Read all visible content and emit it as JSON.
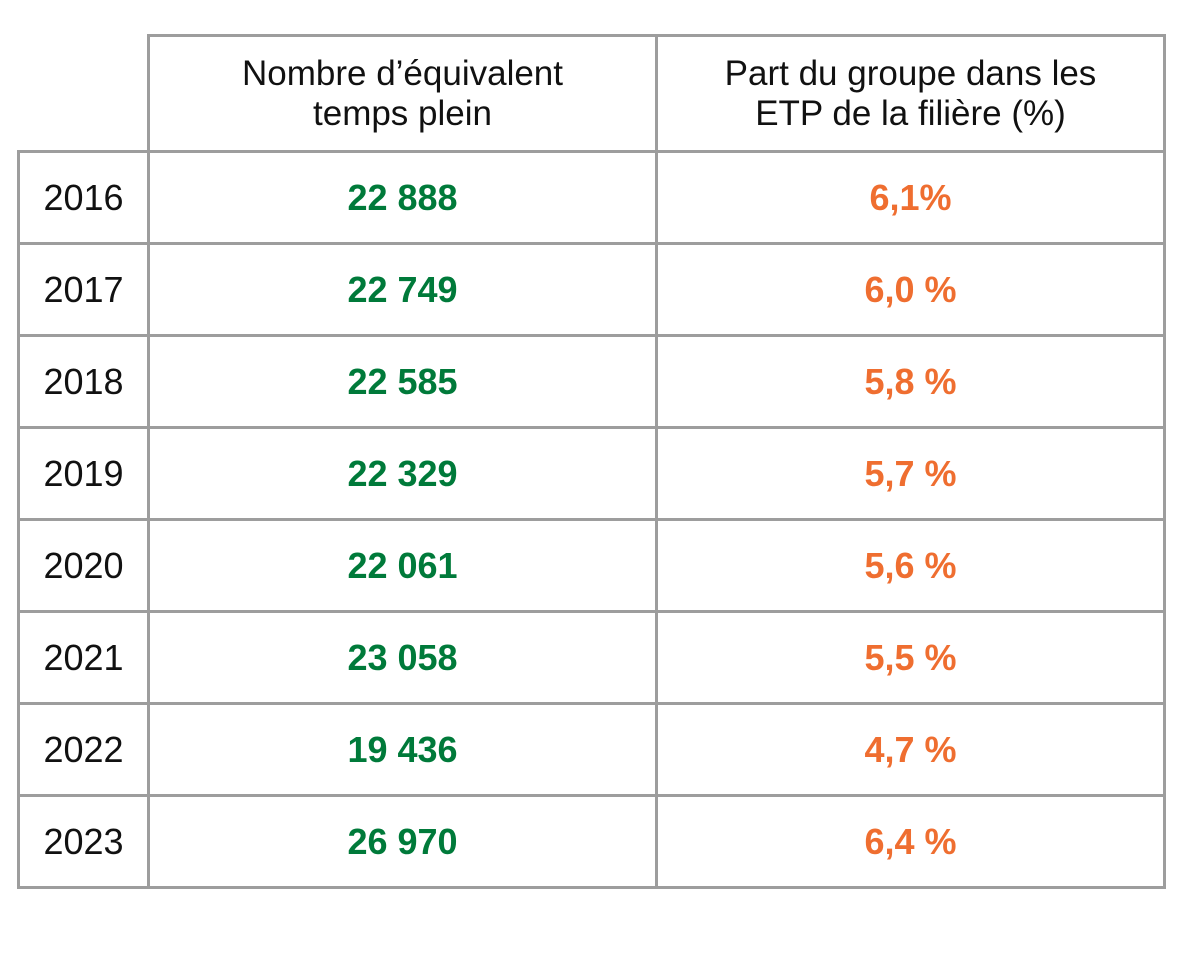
{
  "colors": {
    "fte": "#007a3a",
    "share": "#ef6e30",
    "border": "#9d9d9d"
  },
  "chart_data": {
    "type": "table",
    "columns": [
      "",
      "Nombre d’équivalent temps plein",
      "Part du groupe dans les ETP de la filière  (%)"
    ],
    "rows": [
      {
        "year": "2016",
        "fte": "22 888",
        "share": "6,1%"
      },
      {
        "year": "2017",
        "fte": "22 749",
        "share": "6,0 %"
      },
      {
        "year": "2018",
        "fte": "22 585",
        "share": "5,8 %"
      },
      {
        "year": "2019",
        "fte": "22 329",
        "share": "5,7 %"
      },
      {
        "year": "2020",
        "fte": "22 061",
        "share": "5,6 %"
      },
      {
        "year": "2021",
        "fte": "23 058",
        "share": "5,5 %"
      },
      {
        "year": "2022",
        "fte": "19 436",
        "share": "4,7 %"
      },
      {
        "year": "2023",
        "fte": "26 970",
        "share": "6,4 %"
      }
    ]
  }
}
